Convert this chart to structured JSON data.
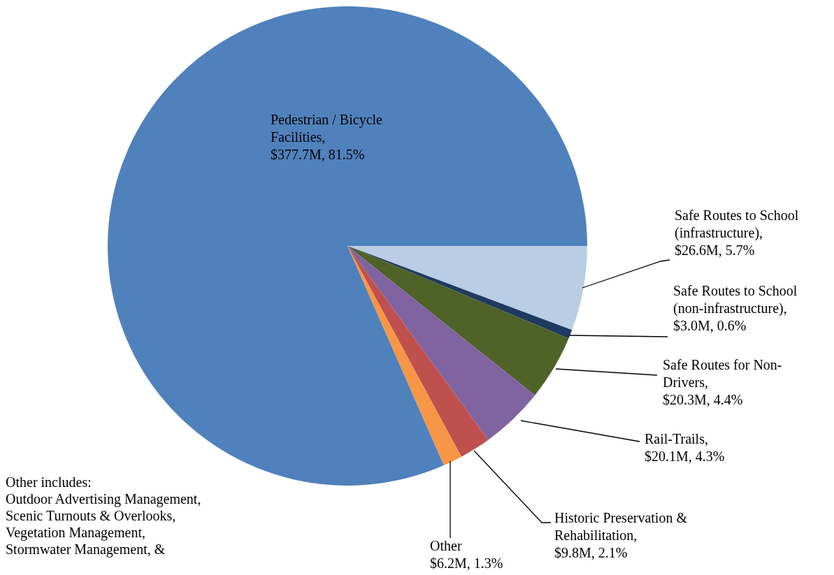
{
  "chart_data": {
    "type": "pie",
    "categories": [
      "Safe Routes to School (infrastructure)",
      "Safe Routes to School (non-infrastructure)",
      "Safe Routes for Non-Drivers",
      "Rail-Trails",
      "Historic Preservation & Rehabilitation",
      "Other",
      "Pedestrian / Bicycle Facilities"
    ],
    "values": [
      5.7,
      0.6,
      4.4,
      4.3,
      2.1,
      1.3,
      81.5
    ],
    "value_labels": [
      ", $26.6M, 5.7%",
      ", $3.0M, 0.6%",
      ", $20.3M, 4.4%",
      ", $20.1M, 4.3%",
      ", $9.8M, 2.1%",
      "$6.2M, 1.3%",
      ", $377.7M, 81.5%"
    ],
    "colors": [
      "#b9cde5",
      "#1f3a60",
      "#4f6228",
      "#8064a2",
      "#c0504d",
      "#f79646",
      "#4f81bd"
    ],
    "annotations": [
      "Other includes:",
      "Outdoor Advertising Management,",
      "Scenic Turnouts & Overlooks,",
      "Vegetation Management,",
      "Stormwater Management, &"
    ]
  }
}
